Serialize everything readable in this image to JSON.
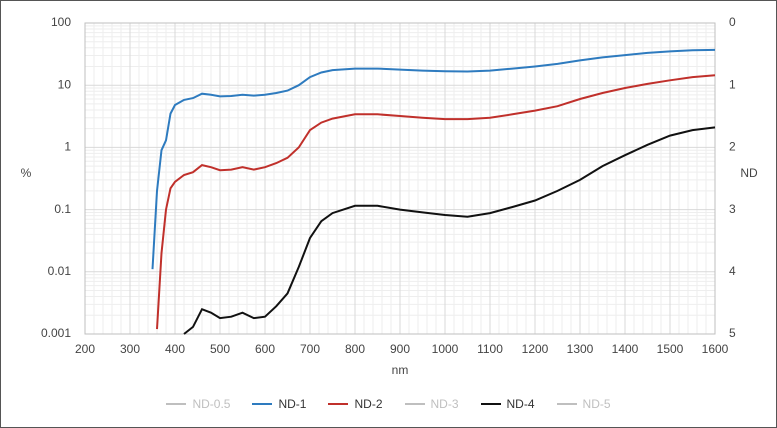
{
  "chart_data": {
    "type": "line",
    "y_label": "%",
    "y2_label": "ND",
    "x_label": "nm",
    "x": [
      350,
      360,
      370,
      380,
      390,
      400,
      420,
      440,
      460,
      480,
      500,
      525,
      550,
      575,
      600,
      625,
      650,
      675,
      700,
      725,
      750,
      800,
      850,
      900,
      950,
      1000,
      1050,
      1100,
      1150,
      1200,
      1250,
      1300,
      1350,
      1400,
      1450,
      1500,
      1550,
      1600
    ],
    "xlim": [
      200,
      1600
    ],
    "xticks": [
      200,
      300,
      400,
      500,
      600,
      700,
      800,
      900,
      1000,
      1100,
      1200,
      1300,
      1400,
      1500,
      1600
    ],
    "ylim": [
      0.001,
      100
    ],
    "yticks": [
      100,
      10,
      1,
      0.1,
      0.01,
      0.001
    ],
    "log_y": true,
    "y2lim": [
      5,
      0
    ],
    "y2ticks": [
      0,
      1,
      2,
      3,
      4,
      5
    ],
    "grid": true,
    "minor_grid": true,
    "legend": "bottom",
    "series": [
      {
        "name": "ND-0.5",
        "color": "#bfbfbf",
        "values": [
          null,
          null,
          null,
          null,
          null,
          null,
          null,
          null,
          null,
          null,
          null,
          null,
          null,
          null,
          null,
          null,
          null,
          null,
          null,
          null,
          null,
          null,
          null,
          null,
          null,
          null,
          null,
          null,
          null,
          null,
          null,
          null,
          null,
          null,
          null,
          null,
          null,
          null
        ]
      },
      {
        "name": "ND-1",
        "color": "#2e7bbf",
        "values": [
          0.011,
          0.2,
          0.9,
          1.3,
          3.5,
          4.8,
          5.8,
          6.2,
          7.3,
          7.0,
          6.6,
          6.7,
          7.0,
          6.8,
          7.0,
          7.5,
          8.2,
          10,
          13.5,
          16,
          17.5,
          18.5,
          18.5,
          17.8,
          17.2,
          16.8,
          16.6,
          17.2,
          18.5,
          20,
          22,
          25,
          28,
          30.5,
          33,
          35,
          36.5,
          37
        ]
      },
      {
        "name": "ND-2",
        "color": "#c0302b",
        "values": [
          null,
          0.0012,
          0.02,
          0.1,
          0.22,
          0.28,
          0.36,
          0.4,
          0.52,
          0.48,
          0.43,
          0.44,
          0.48,
          0.44,
          0.48,
          0.56,
          0.68,
          1.0,
          1.9,
          2.5,
          2.9,
          3.4,
          3.4,
          3.2,
          3.0,
          2.85,
          2.85,
          3.0,
          3.4,
          3.9,
          4.6,
          6.0,
          7.5,
          9,
          10.5,
          12,
          13.5,
          14.5
        ]
      },
      {
        "name": "ND-3",
        "color": "#bfbfbf",
        "values": [
          null,
          null,
          null,
          null,
          null,
          null,
          null,
          null,
          null,
          null,
          null,
          null,
          null,
          null,
          null,
          null,
          null,
          null,
          null,
          null,
          null,
          null,
          null,
          null,
          null,
          null,
          null,
          null,
          null,
          null,
          null,
          null,
          null,
          null,
          null,
          null,
          null,
          null
        ]
      },
      {
        "name": "ND-4",
        "color": "#111111",
        "values": [
          null,
          null,
          null,
          null,
          null,
          null,
          0.001,
          0.0013,
          0.0025,
          0.0022,
          0.0018,
          0.0019,
          0.0022,
          0.0018,
          0.0019,
          0.0028,
          0.0045,
          0.012,
          0.035,
          0.065,
          0.088,
          0.115,
          0.115,
          0.1,
          0.09,
          0.082,
          0.077,
          0.088,
          0.11,
          0.14,
          0.2,
          0.3,
          0.5,
          0.75,
          1.1,
          1.55,
          1.9,
          2.1
        ]
      },
      {
        "name": "ND-5",
        "color": "#bfbfbf",
        "values": [
          null,
          null,
          null,
          null,
          null,
          null,
          null,
          null,
          null,
          null,
          null,
          null,
          null,
          null,
          null,
          null,
          null,
          null,
          null,
          null,
          null,
          null,
          null,
          null,
          null,
          null,
          null,
          null,
          null,
          null,
          null,
          null,
          null,
          null,
          null,
          null,
          null,
          null
        ]
      }
    ]
  }
}
